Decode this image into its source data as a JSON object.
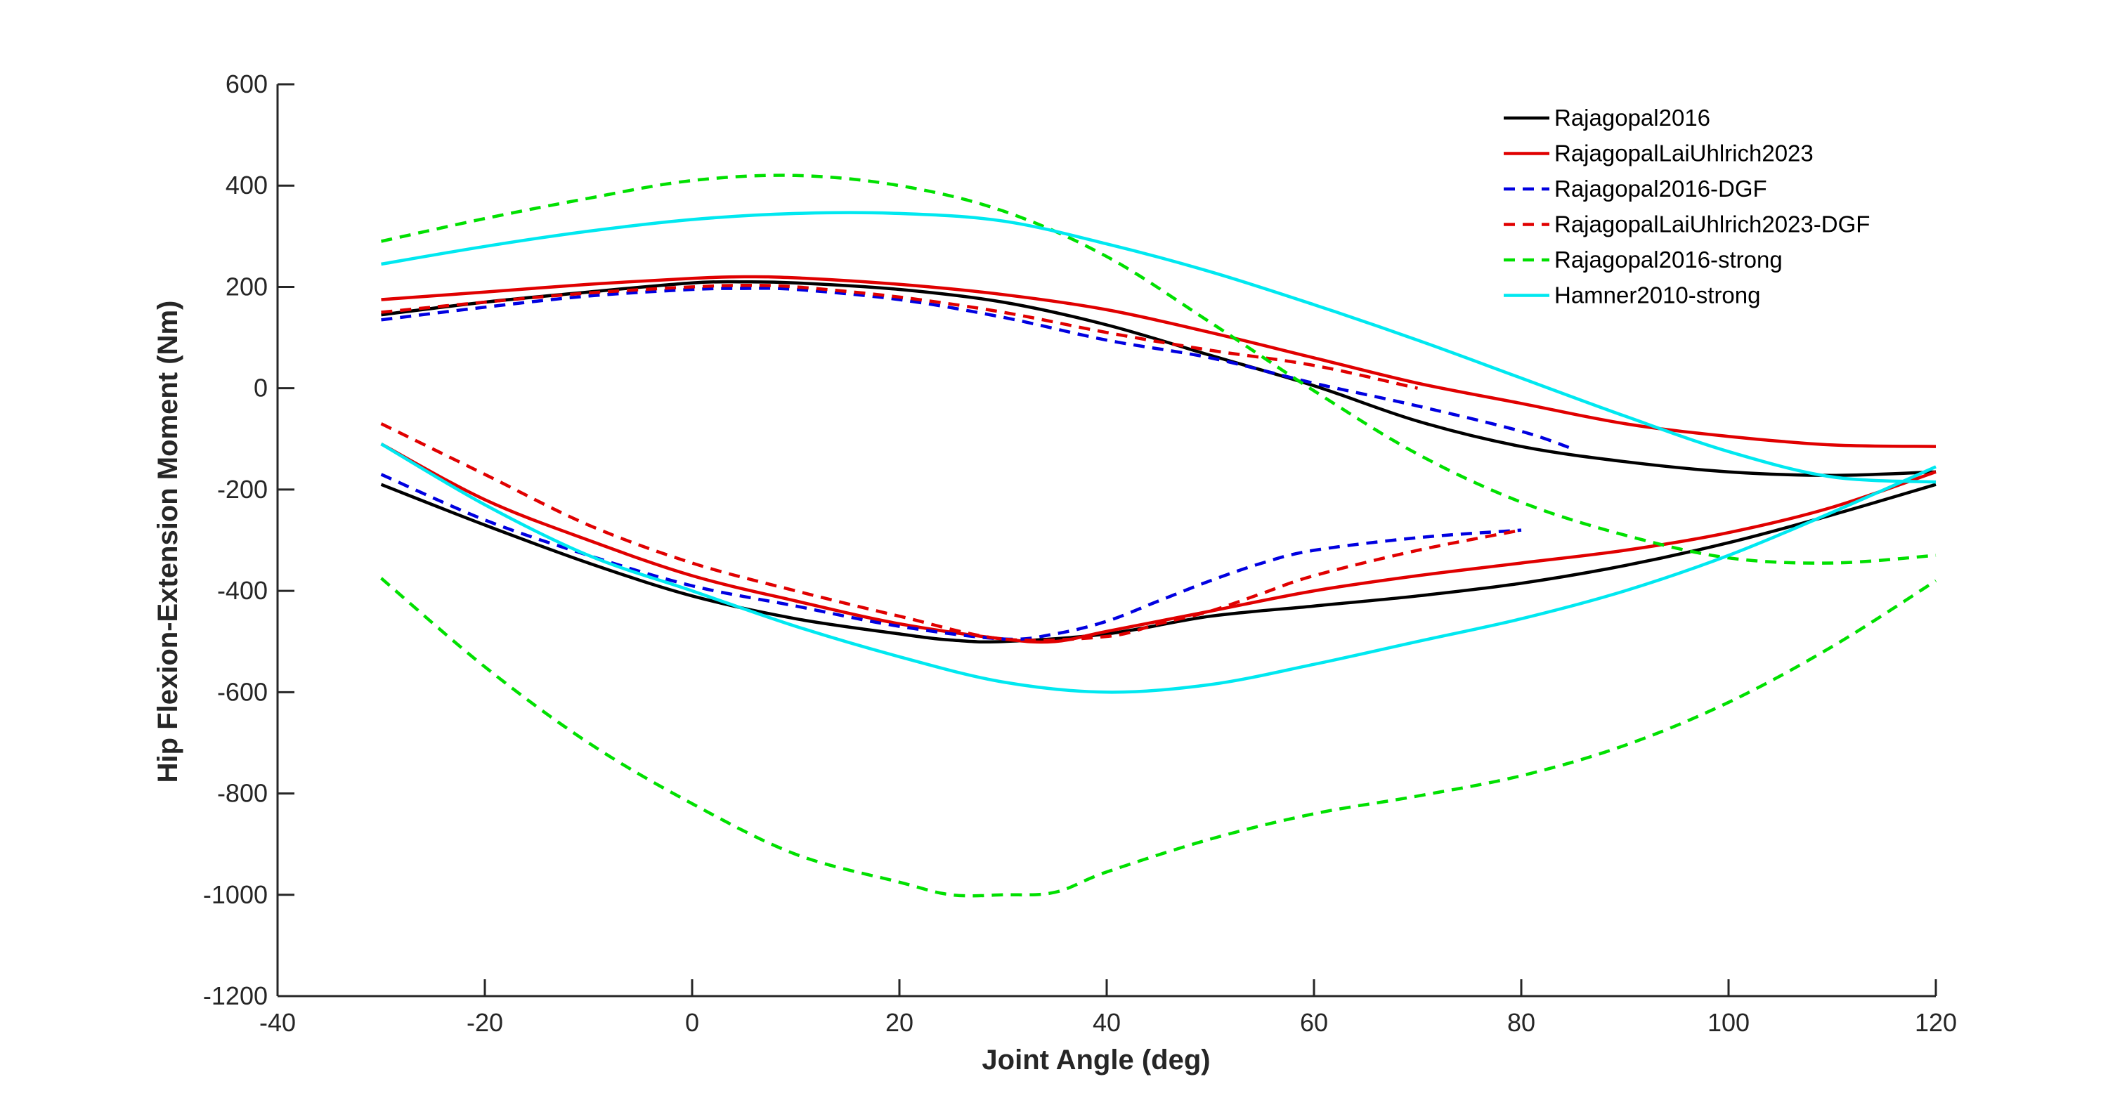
{
  "chart_data": {
    "type": "line",
    "title": "",
    "xlabel": "Joint Angle (deg)",
    "ylabel": "Hip Flexion-Extension Moment (Nm)",
    "xlim": [
      -40,
      120
    ],
    "ylim": [
      -1200,
      600
    ],
    "xticks": [
      -40,
      -20,
      0,
      20,
      40,
      60,
      80,
      100,
      120
    ],
    "yticks": [
      -1200,
      -1000,
      -800,
      -600,
      -400,
      -200,
      0,
      200,
      400,
      600
    ],
    "grid": false,
    "legend_position": "top-right",
    "series": [
      {
        "name": "Rajagopal2016",
        "color": "#000000",
        "dash": "solid",
        "curves": [
          [
            [
              -30,
              145
            ],
            [
              -20,
              170
            ],
            [
              -10,
              190
            ],
            [
              0,
              208
            ],
            [
              5,
              210
            ],
            [
              10,
              208
            ],
            [
              20,
              195
            ],
            [
              30,
              170
            ],
            [
              40,
              125
            ],
            [
              50,
              65
            ],
            [
              60,
              5
            ],
            [
              70,
              -65
            ],
            [
              80,
              -115
            ],
            [
              90,
              -145
            ],
            [
              100,
              -165
            ],
            [
              110,
              -172
            ],
            [
              120,
              -165
            ]
          ],
          [
            [
              -30,
              -190
            ],
            [
              -20,
              -270
            ],
            [
              -10,
              -345
            ],
            [
              0,
              -410
            ],
            [
              10,
              -455
            ],
            [
              20,
              -485
            ],
            [
              25,
              -497
            ],
            [
              30,
              -500
            ],
            [
              40,
              -485
            ],
            [
              50,
              -450
            ],
            [
              60,
              -430
            ],
            [
              70,
              -410
            ],
            [
              80,
              -385
            ],
            [
              90,
              -350
            ],
            [
              100,
              -305
            ],
            [
              110,
              -250
            ],
            [
              120,
              -190
            ]
          ]
        ]
      },
      {
        "name": "RajagopalLaiUhlrich2023",
        "color": "#e00000",
        "dash": "solid",
        "curves": [
          [
            [
              -30,
              175
            ],
            [
              -20,
              190
            ],
            [
              -10,
              205
            ],
            [
              0,
              217
            ],
            [
              5,
              220
            ],
            [
              10,
              218
            ],
            [
              20,
              205
            ],
            [
              30,
              185
            ],
            [
              40,
              155
            ],
            [
              50,
              110
            ],
            [
              60,
              60
            ],
            [
              70,
              10
            ],
            [
              80,
              -30
            ],
            [
              90,
              -70
            ],
            [
              100,
              -95
            ],
            [
              110,
              -112
            ],
            [
              120,
              -115
            ]
          ],
          [
            [
              -30,
              -110
            ],
            [
              -20,
              -220
            ],
            [
              -10,
              -300
            ],
            [
              0,
              -370
            ],
            [
              10,
              -420
            ],
            [
              20,
              -465
            ],
            [
              30,
              -495
            ],
            [
              35,
              -500
            ],
            [
              40,
              -480
            ],
            [
              50,
              -440
            ],
            [
              60,
              -400
            ],
            [
              70,
              -370
            ],
            [
              80,
              -345
            ],
            [
              90,
              -320
            ],
            [
              100,
              -285
            ],
            [
              110,
              -235
            ],
            [
              120,
              -165
            ]
          ]
        ]
      },
      {
        "name": "Rajagopal2016-DGF",
        "color": "#0000e0",
        "dash": "dash",
        "curves": [
          [
            [
              -30,
              135
            ],
            [
              -20,
              160
            ],
            [
              -10,
              182
            ],
            [
              0,
              195
            ],
            [
              5,
              197
            ],
            [
              10,
              195
            ],
            [
              20,
              175
            ],
            [
              30,
              140
            ],
            [
              40,
              95
            ],
            [
              50,
              60
            ],
            [
              60,
              10
            ],
            [
              70,
              -35
            ],
            [
              80,
              -85
            ],
            [
              85,
              -120
            ]
          ],
          [
            [
              -30,
              -170
            ],
            [
              -20,
              -260
            ],
            [
              -10,
              -330
            ],
            [
              0,
              -390
            ],
            [
              10,
              -430
            ],
            [
              20,
              -470
            ],
            [
              30,
              -495
            ],
            [
              35,
              -485
            ],
            [
              40,
              -460
            ],
            [
              45,
              -420
            ],
            [
              50,
              -380
            ],
            [
              55,
              -345
            ],
            [
              60,
              -320
            ],
            [
              70,
              -295
            ],
            [
              80,
              -280
            ]
          ]
        ]
      },
      {
        "name": "RajagopalLaiUhlrich2023-DGF",
        "color": "#e00000",
        "dash": "dash",
        "curves": [
          [
            [
              -30,
              150
            ],
            [
              -20,
              170
            ],
            [
              -10,
              188
            ],
            [
              0,
              200
            ],
            [
              5,
              203
            ],
            [
              10,
              200
            ],
            [
              20,
              180
            ],
            [
              30,
              150
            ],
            [
              40,
              110
            ],
            [
              50,
              75
            ],
            [
              60,
              45
            ],
            [
              70,
              0
            ]
          ],
          [
            [
              -30,
              -70
            ],
            [
              -20,
              -170
            ],
            [
              -10,
              -270
            ],
            [
              0,
              -345
            ],
            [
              10,
              -400
            ],
            [
              20,
              -450
            ],
            [
              30,
              -495
            ],
            [
              40,
              -490
            ],
            [
              45,
              -465
            ],
            [
              50,
              -440
            ],
            [
              55,
              -405
            ],
            [
              60,
              -370
            ],
            [
              70,
              -320
            ],
            [
              80,
              -280
            ]
          ]
        ]
      },
      {
        "name": "Rajagopal2016-strong",
        "color": "#00e000",
        "dash": "dash",
        "curves": [
          [
            [
              -30,
              290
            ],
            [
              -20,
              335
            ],
            [
              -10,
              375
            ],
            [
              0,
              410
            ],
            [
              10,
              420
            ],
            [
              20,
              400
            ],
            [
              30,
              350
            ],
            [
              40,
              260
            ],
            [
              50,
              130
            ],
            [
              60,
              -5
            ],
            [
              70,
              -130
            ],
            [
              80,
              -225
            ],
            [
              90,
              -290
            ],
            [
              100,
              -335
            ],
            [
              110,
              -345
            ],
            [
              120,
              -330
            ]
          ],
          [
            [
              -30,
              -375
            ],
            [
              -20,
              -550
            ],
            [
              -10,
              -700
            ],
            [
              0,
              -820
            ],
            [
              10,
              -920
            ],
            [
              20,
              -975
            ],
            [
              25,
              -1000
            ],
            [
              30,
              -1000
            ],
            [
              35,
              -995
            ],
            [
              40,
              -955
            ],
            [
              50,
              -890
            ],
            [
              60,
              -840
            ],
            [
              70,
              -805
            ],
            [
              80,
              -765
            ],
            [
              90,
              -705
            ],
            [
              100,
              -620
            ],
            [
              110,
              -510
            ],
            [
              120,
              -380
            ]
          ]
        ]
      },
      {
        "name": "Hamner2010-strong",
        "color": "#00e8f0",
        "dash": "solid",
        "curves": [
          [
            [
              -30,
              245
            ],
            [
              -20,
              280
            ],
            [
              -10,
              310
            ],
            [
              0,
              333
            ],
            [
              10,
              345
            ],
            [
              20,
              345
            ],
            [
              30,
              330
            ],
            [
              40,
              285
            ],
            [
              50,
              230
            ],
            [
              60,
              165
            ],
            [
              70,
              95
            ],
            [
              80,
              20
            ],
            [
              90,
              -55
            ],
            [
              100,
              -125
            ],
            [
              110,
              -175
            ],
            [
              120,
              -185
            ]
          ],
          [
            [
              -30,
              -110
            ],
            [
              -20,
              -230
            ],
            [
              -10,
              -330
            ],
            [
              0,
              -400
            ],
            [
              10,
              -470
            ],
            [
              20,
              -530
            ],
            [
              30,
              -580
            ],
            [
              40,
              -600
            ],
            [
              50,
              -585
            ],
            [
              60,
              -545
            ],
            [
              70,
              -500
            ],
            [
              80,
              -455
            ],
            [
              90,
              -400
            ],
            [
              100,
              -330
            ],
            [
              110,
              -245
            ],
            [
              120,
              -155
            ]
          ]
        ]
      }
    ]
  }
}
